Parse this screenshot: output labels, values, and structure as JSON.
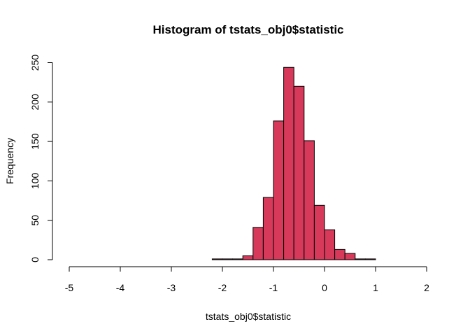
{
  "chart_data": {
    "type": "bar",
    "title": "Histogram of tstats_obj0$statistic",
    "xlabel": "tstats_obj0$statistic",
    "ylabel": "Frequency",
    "xlim": [
      -5,
      2
    ],
    "ylim": [
      0,
      250
    ],
    "xticks": [
      "-5",
      "-4",
      "-3",
      "-2",
      "-1",
      "0",
      "1",
      "2"
    ],
    "yticks": [
      "0",
      "50",
      "100",
      "150",
      "200",
      "250"
    ],
    "grid": false,
    "bar_color": "#D6395A",
    "bin_edges": [
      -2.2,
      -2.0,
      -1.8,
      -1.6,
      -1.4,
      -1.2,
      -1.0,
      -0.8,
      -0.6,
      -0.4,
      -0.2,
      0.0,
      0.2,
      0.4,
      0.6,
      0.8,
      1.0
    ],
    "values": [
      1,
      1,
      1,
      5,
      41,
      79,
      176,
      244,
      220,
      151,
      69,
      38,
      13,
      8,
      1,
      1
    ]
  }
}
